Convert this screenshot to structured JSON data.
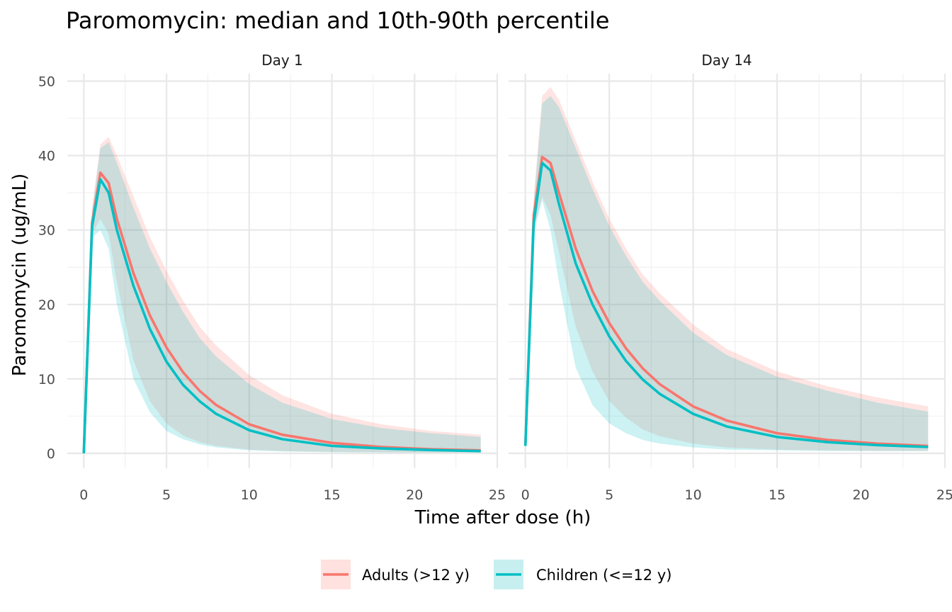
{
  "chart_data": {
    "type": "area",
    "title": "Paromomycin: median and 10th-90th percentile",
    "xlabel": "Time after dose (h)",
    "ylabel": "Paromomycin (ug/mL)",
    "xlim": [
      -1,
      25
    ],
    "ylim": [
      -2,
      51
    ],
    "x_ticks": [
      0,
      5,
      10,
      15,
      20,
      25
    ],
    "y_ticks": [
      0,
      10,
      20,
      30,
      40,
      50
    ],
    "x_tick_labels": [
      "0",
      "5",
      "10",
      "15",
      "20",
      "25"
    ],
    "y_tick_labels": [
      "0",
      "10",
      "20",
      "30",
      "40",
      "50"
    ],
    "grid": true,
    "legend_position": "bottom",
    "legend": [
      {
        "label": "Adults (>12 y)",
        "color": "#F8766D",
        "fill": "#FFE1DF"
      },
      {
        "label": "Children (<=12 y)",
        "color": "#00BFC4",
        "fill": "#C7EFF0"
      }
    ],
    "overlap_fill": "#CCDDDC",
    "panels": [
      {
        "strip": "Day 1",
        "series": [
          {
            "name": "Adults (>12 y)",
            "x": [
              0,
              0.5,
              1,
              1.5,
              2,
              3,
              4,
              5,
              6,
              7,
              8,
              10,
              12,
              15,
              18,
              21,
              24
            ],
            "median": [
              0,
              31,
              37.7,
              36.3,
              31.5,
              24.2,
              18.5,
              14.2,
              10.9,
              8.4,
              6.5,
              3.9,
              2.5,
              1.4,
              0.85,
              0.55,
              0.4
            ],
            "p10": [
              0,
              29.5,
              31.5,
              29.5,
              23,
              12.5,
              7,
              4,
              2.4,
              1.5,
              1,
              0.5,
              0.3,
              0.2,
              0.15,
              0.1,
              0.1
            ],
            "p90": [
              0,
              33,
              41.5,
              42.5,
              40,
              34.5,
              29,
              24.5,
              20.5,
              17,
              14.5,
              10.5,
              7.8,
              5.3,
              3.9,
              3,
              2.5
            ]
          },
          {
            "name": "Children (<=12 y)",
            "x": [
              0,
              0.5,
              1,
              1.5,
              2,
              3,
              4,
              5,
              6,
              7,
              8,
              10,
              12,
              15,
              18,
              21,
              24
            ],
            "median": [
              0,
              30.5,
              36.8,
              35,
              30,
              22.5,
              16.7,
              12.3,
              9.2,
              7,
              5.3,
              3.1,
              1.9,
              1,
              0.65,
              0.45,
              0.3
            ],
            "p10": [
              0,
              29,
              30,
              27.5,
              20,
              10,
              5.5,
              3,
              1.9,
              1.2,
              0.8,
              0.4,
              0.25,
              0.15,
              0.1,
              0.1,
              0.1
            ],
            "p90": [
              0,
              32.5,
              41,
              41.8,
              39,
              33,
              27.5,
              23,
              19,
              15.5,
              13,
              9.3,
              6.8,
              4.6,
              3.4,
              2.7,
              2.2
            ]
          }
        ]
      },
      {
        "strip": "Day 14",
        "series": [
          {
            "name": "Adults (>12 y)",
            "x": [
              0,
              0.5,
              1,
              1.5,
              2,
              3,
              4,
              5,
              6,
              7,
              8,
              10,
              12,
              15,
              18,
              21,
              24
            ],
            "median": [
              1,
              32,
              39.8,
              39,
              35,
              27.5,
              21.8,
              17.5,
              14.1,
              11.4,
              9.3,
              6.3,
              4.4,
              2.7,
              1.8,
              1.3,
              1
            ],
            "p10": [
              1,
              30,
              34.5,
              32,
              27,
              17,
              11,
              7,
              4.8,
              3.2,
              2.3,
              1.3,
              0.8,
              0.5,
              0.4,
              0.3,
              0.3
            ],
            "p90": [
              1,
              34.5,
              48,
              49.2,
              47.5,
              42,
              36.5,
              31.5,
              27.5,
              24,
              21.5,
              17.3,
              14,
              11,
              9,
              7.5,
              6.3
            ]
          },
          {
            "name": "Children (<=12 y)",
            "x": [
              0,
              0.5,
              1,
              1.5,
              2,
              3,
              4,
              5,
              6,
              7,
              8,
              10,
              12,
              15,
              18,
              21,
              24
            ],
            "median": [
              1,
              31,
              39,
              38,
              33.5,
              25.5,
              20,
              15.7,
              12.4,
              9.9,
              8,
              5.3,
              3.6,
              2.2,
              1.5,
              1.1,
              0.85
            ],
            "p10": [
              1,
              29.5,
              34,
              30,
              23,
              11.5,
              6.5,
              4,
              2.7,
              1.8,
              1.3,
              0.8,
              0.5,
              0.4,
              0.3,
              0.3,
              0.3
            ],
            "p90": [
              1,
              33.5,
              47,
              48,
              46.5,
              41,
              35.5,
              30.5,
              26.5,
              23,
              20.5,
              16.2,
              13.2,
              10.3,
              8.4,
              6.8,
              5.6
            ]
          }
        ]
      }
    ]
  }
}
